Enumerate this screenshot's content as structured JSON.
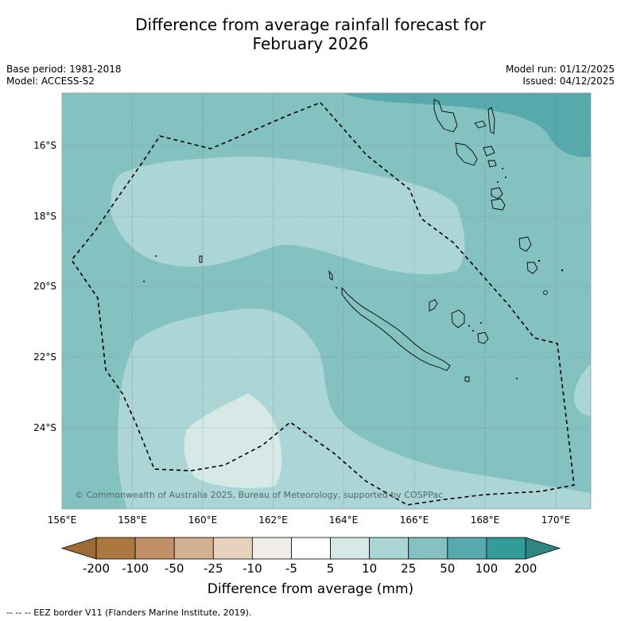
{
  "title": {
    "line1": "Difference from average rainfall forecast for",
    "line2": "February 2026"
  },
  "info": {
    "base_period": "Base period: 1981-2018",
    "model": "Model: ACCESS-S2",
    "model_run": "Model run: 01/12/2025",
    "issued": "Issued: 04/12/2025"
  },
  "map": {
    "lon_ticks": [
      "156°E",
      "158°E",
      "160°E",
      "162°E",
      "164°E",
      "166°E",
      "168°E",
      "170°E"
    ],
    "lat_ticks": [
      "16°S",
      "18°S",
      "20°S",
      "22°S",
      "24°S"
    ],
    "copyright": "© Commonwealth of Australia 2025, Bureau of Meteorology, supported by COSPPac"
  },
  "colorbar": {
    "ticks": [
      "-200",
      "-100",
      "-50",
      "-25",
      "-10",
      "-5",
      "5",
      "10",
      "25",
      "50",
      "100",
      "200"
    ],
    "colors": [
      "#ad7840",
      "#c19066",
      "#d4b092",
      "#e6d2bd",
      "#f0ece8",
      "#ffffff",
      "#d6e9e7",
      "#acd6d5",
      "#84c2c1",
      "#57aaab",
      "#339b98"
    ],
    "under_color": "#9e6a36",
    "over_color": "#2f8581",
    "label": "Difference from average (mm)"
  },
  "palette": {
    "base": "#84c2c1",
    "light": "#acd6d5",
    "lighter": "#d6e9e7",
    "dark": "#57aaab"
  },
  "footnote": "--  --  -- EEZ border V11 (Flanders Marine Institute, 2019)."
}
